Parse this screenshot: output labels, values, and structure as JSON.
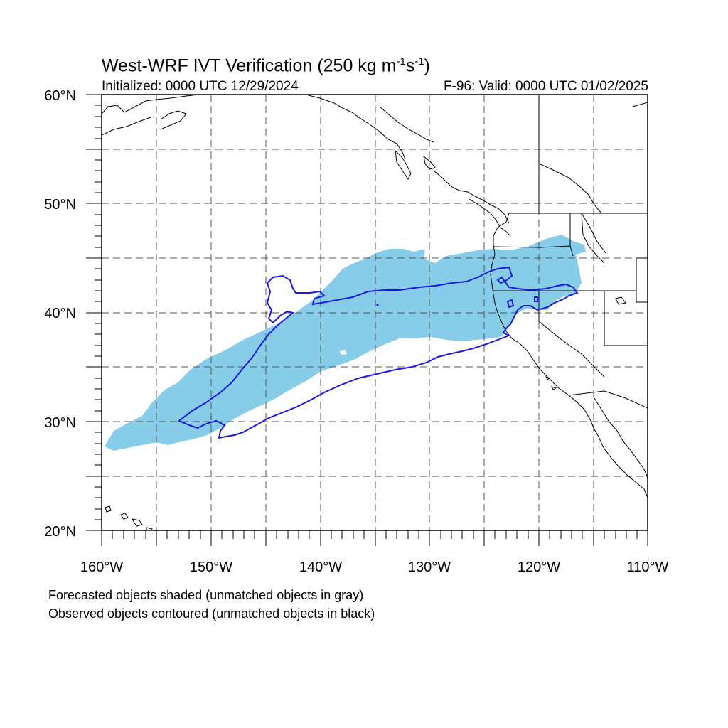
{
  "title": {
    "main_prefix": "West-WRF IVT Verification (250 kg m",
    "exp1": "-1",
    "main_mid": "s",
    "exp2": "-1",
    "main_suffix": ")"
  },
  "subtitle": {
    "left": "Initialized: 0000 UTC 12/29/2024",
    "right": "F-96: Valid: 0000 UTC 01/02/2025"
  },
  "axes": {
    "lat_labels": [
      "60°N",
      "50°N",
      "40°N",
      "30°N",
      "20°N"
    ],
    "lon_labels": [
      "160°W",
      "150°W",
      "140°W",
      "130°W",
      "120°W",
      "110°W"
    ],
    "lon_range": [
      -160,
      -110
    ],
    "lat_range": [
      20,
      60
    ],
    "grid": "dashed every 5 degrees"
  },
  "legend_notes": [
    "Forecasted objects shaded (unmatched objects in gray)",
    "Observed objects contoured (unmatched objects in black)"
  ],
  "colors": {
    "forecast_fill": "#87cdea",
    "observed_contour": "#1a1ae6",
    "coastline": "#000000",
    "grid": "#555555"
  },
  "map_objects": {
    "forecast_object": {
      "type": "shaded",
      "matched": true
    },
    "observed_object": {
      "type": "contour",
      "matched": true
    }
  }
}
